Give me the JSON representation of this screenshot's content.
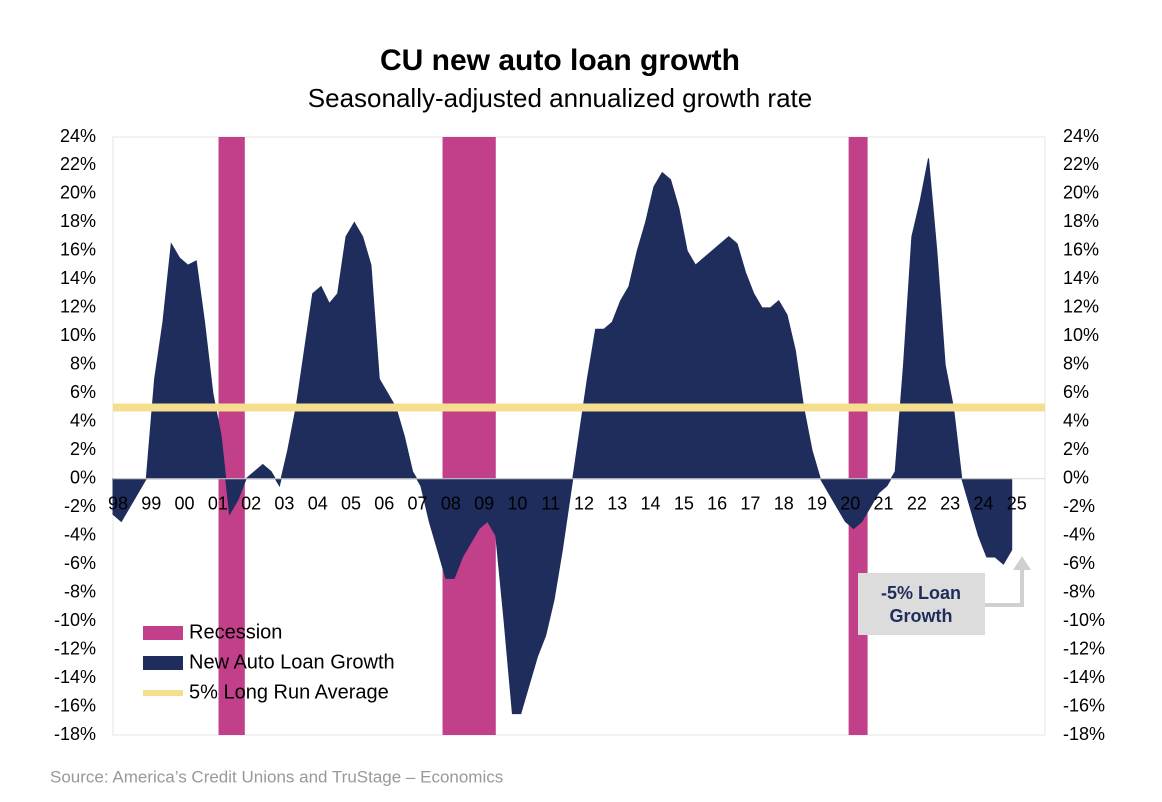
{
  "chart_data": {
    "type": "area",
    "title": "CU new auto loan growth",
    "subtitle": "Seasonally-adjusted annualized growth rate",
    "source": "Source: America’s Credit Unions and TruStage – Economics",
    "x": [
      1998,
      1998.25,
      1998.5,
      1998.75,
      1999,
      1999.25,
      1999.5,
      1999.75,
      2000,
      2000.25,
      2000.5,
      2000.75,
      2001,
      2001.25,
      2001.5,
      2001.75,
      2002,
      2002.25,
      2002.5,
      2002.75,
      2003,
      2003.25,
      2003.5,
      2003.75,
      2004,
      2004.25,
      2004.5,
      2004.75,
      2005,
      2005.25,
      2005.5,
      2005.75,
      2006,
      2006.25,
      2006.5,
      2006.75,
      2007,
      2007.25,
      2007.5,
      2007.75,
      2008,
      2008.25,
      2008.5,
      2008.75,
      2009,
      2009.25,
      2009.5,
      2009.75,
      2010,
      2010.25,
      2010.5,
      2010.75,
      2011,
      2011.25,
      2011.5,
      2011.75,
      2012,
      2012.25,
      2012.5,
      2012.75,
      2013,
      2013.25,
      2013.5,
      2013.75,
      2014,
      2014.25,
      2014.5,
      2014.75,
      2015,
      2015.25,
      2015.5,
      2015.75,
      2016,
      2016.25,
      2016.5,
      2016.75,
      2017,
      2017.25,
      2017.5,
      2017.75,
      2018,
      2018.25,
      2018.5,
      2018.75,
      2019,
      2019.25,
      2019.5,
      2019.75,
      2020,
      2020.25,
      2020.5,
      2020.75,
      2021,
      2021.25,
      2021.5,
      2021.75,
      2022,
      2022.25,
      2022.5,
      2022.75,
      2023,
      2023.25,
      2023.5,
      2023.75,
      2024,
      2024.25,
      2024.5,
      2024.75,
      2025
    ],
    "series": [
      {
        "name": "New Auto Loan Growth",
        "color": "#1f2d5c",
        "values": [
          -2.5,
          -3,
          -2,
          -1,
          0,
          7,
          11,
          16.5,
          15.5,
          15,
          15.3,
          11,
          6,
          3,
          -2.5,
          -1.5,
          0,
          0.5,
          1,
          0.5,
          -0.5,
          2,
          5,
          9,
          13,
          13.5,
          12.3,
          13,
          17,
          18,
          17,
          15,
          7,
          6,
          5,
          3,
          0.5,
          -0.5,
          -3,
          -5,
          -7,
          -7,
          -5.5,
          -4.5,
          -3.5,
          -3,
          -4,
          -10,
          -16.5,
          -16.5,
          -14.5,
          -12.5,
          -11,
          -8.5,
          -5,
          -1,
          3,
          7,
          10.5,
          10.5,
          11,
          12.5,
          13.5,
          16,
          18,
          20.5,
          21.5,
          21,
          19,
          16,
          15,
          15.5,
          16,
          16.5,
          17,
          16.5,
          14.5,
          13,
          12,
          12,
          12.5,
          11.5,
          9,
          5,
          2,
          0,
          -1,
          -2,
          -3,
          -3.5,
          -3,
          -2,
          -1,
          -0.5,
          0.5,
          8,
          17,
          19.5,
          22.5,
          16,
          8,
          5,
          0,
          -2,
          -4,
          -5.5,
          -5.5,
          -6,
          -5
        ]
      }
    ],
    "bands": {
      "name": "Recession",
      "color": "#c2408a",
      "spans": [
        [
          2001.17,
          2001.96
        ],
        [
          2007.9,
          2009.5
        ],
        [
          2020.1,
          2020.67
        ]
      ]
    },
    "reference_line": {
      "name": "5% Long Run Average",
      "value": 5,
      "color": "#f5df8e"
    },
    "annotation": {
      "lines": [
        "-5% Loan",
        "Growth"
      ]
    },
    "legend": "lower left",
    "xlim": [
      1998,
      2026
    ],
    "xticks": [
      {
        "value": 1998,
        "label": "98"
      },
      {
        "value": 1999,
        "label": "99"
      },
      {
        "value": 2000,
        "label": "00"
      },
      {
        "value": 2001,
        "label": "01"
      },
      {
        "value": 2002,
        "label": "02"
      },
      {
        "value": 2003,
        "label": "03"
      },
      {
        "value": 2004,
        "label": "04"
      },
      {
        "value": 2005,
        "label": "05"
      },
      {
        "value": 2006,
        "label": "06"
      },
      {
        "value": 2007,
        "label": "07"
      },
      {
        "value": 2008,
        "label": "08"
      },
      {
        "value": 2009,
        "label": "09"
      },
      {
        "value": 2010,
        "label": "10"
      },
      {
        "value": 2011,
        "label": "11"
      },
      {
        "value": 2012,
        "label": "12"
      },
      {
        "value": 2013,
        "label": "13"
      },
      {
        "value": 2014,
        "label": "14"
      },
      {
        "value": 2015,
        "label": "15"
      },
      {
        "value": 2016,
        "label": "16"
      },
      {
        "value": 2017,
        "label": "17"
      },
      {
        "value": 2018,
        "label": "18"
      },
      {
        "value": 2019,
        "label": "19"
      },
      {
        "value": 2020,
        "label": "20"
      },
      {
        "value": 2021,
        "label": "21"
      },
      {
        "value": 2022,
        "label": "22"
      },
      {
        "value": 2023,
        "label": "23"
      },
      {
        "value": 2024,
        "label": "24"
      },
      {
        "value": 2025,
        "label": "25"
      }
    ],
    "ylim": [
      -18,
      24
    ],
    "yticks": [
      {
        "value": -18,
        "label": "-18%"
      },
      {
        "value": -16,
        "label": "-16%"
      },
      {
        "value": -14,
        "label": "-14%"
      },
      {
        "value": -12,
        "label": "-12%"
      },
      {
        "value": -10,
        "label": "-10%"
      },
      {
        "value": -8,
        "label": "-8%"
      },
      {
        "value": -6,
        "label": "-6%"
      },
      {
        "value": -4,
        "label": "-4%"
      },
      {
        "value": -2,
        "label": "-2%"
      },
      {
        "value": 0,
        "label": "0%"
      },
      {
        "value": 2,
        "label": "2%"
      },
      {
        "value": 4,
        "label": "4%"
      },
      {
        "value": 6,
        "label": "6%"
      },
      {
        "value": 8,
        "label": "8%"
      },
      {
        "value": 10,
        "label": "10%"
      },
      {
        "value": 12,
        "label": "12%"
      },
      {
        "value": 14,
        "label": "14%"
      },
      {
        "value": 16,
        "label": "16%"
      },
      {
        "value": 18,
        "label": "18%"
      },
      {
        "value": 20,
        "label": "20%"
      },
      {
        "value": 22,
        "label": "22%"
      },
      {
        "value": 24,
        "label": "24%"
      }
    ],
    "y2lim": [
      -18,
      24
    ],
    "y2ticks": [
      {
        "value": -18,
        "label": "-18%"
      },
      {
        "value": -16,
        "label": "-16%"
      },
      {
        "value": -14,
        "label": "-14%"
      },
      {
        "value": -12,
        "label": "-12%"
      },
      {
        "value": -10,
        "label": "-10%"
      },
      {
        "value": -8,
        "label": "-8%"
      },
      {
        "value": -6,
        "label": "-6%"
      },
      {
        "value": -4,
        "label": "-4%"
      },
      {
        "value": -2,
        "label": "-2%"
      },
      {
        "value": 0,
        "label": "0%"
      },
      {
        "value": 2,
        "label": "2%"
      },
      {
        "value": 4,
        "label": "4%"
      },
      {
        "value": 6,
        "label": "6%"
      },
      {
        "value": 8,
        "label": "8%"
      },
      {
        "value": 10,
        "label": "10%"
      },
      {
        "value": 12,
        "label": "12%"
      },
      {
        "value": 14,
        "label": "14%"
      },
      {
        "value": 16,
        "label": "16%"
      },
      {
        "value": 18,
        "label": "18%"
      },
      {
        "value": 20,
        "label": "20%"
      },
      {
        "value": 22,
        "label": "22%"
      },
      {
        "value": 24,
        "label": "24%"
      }
    ]
  }
}
